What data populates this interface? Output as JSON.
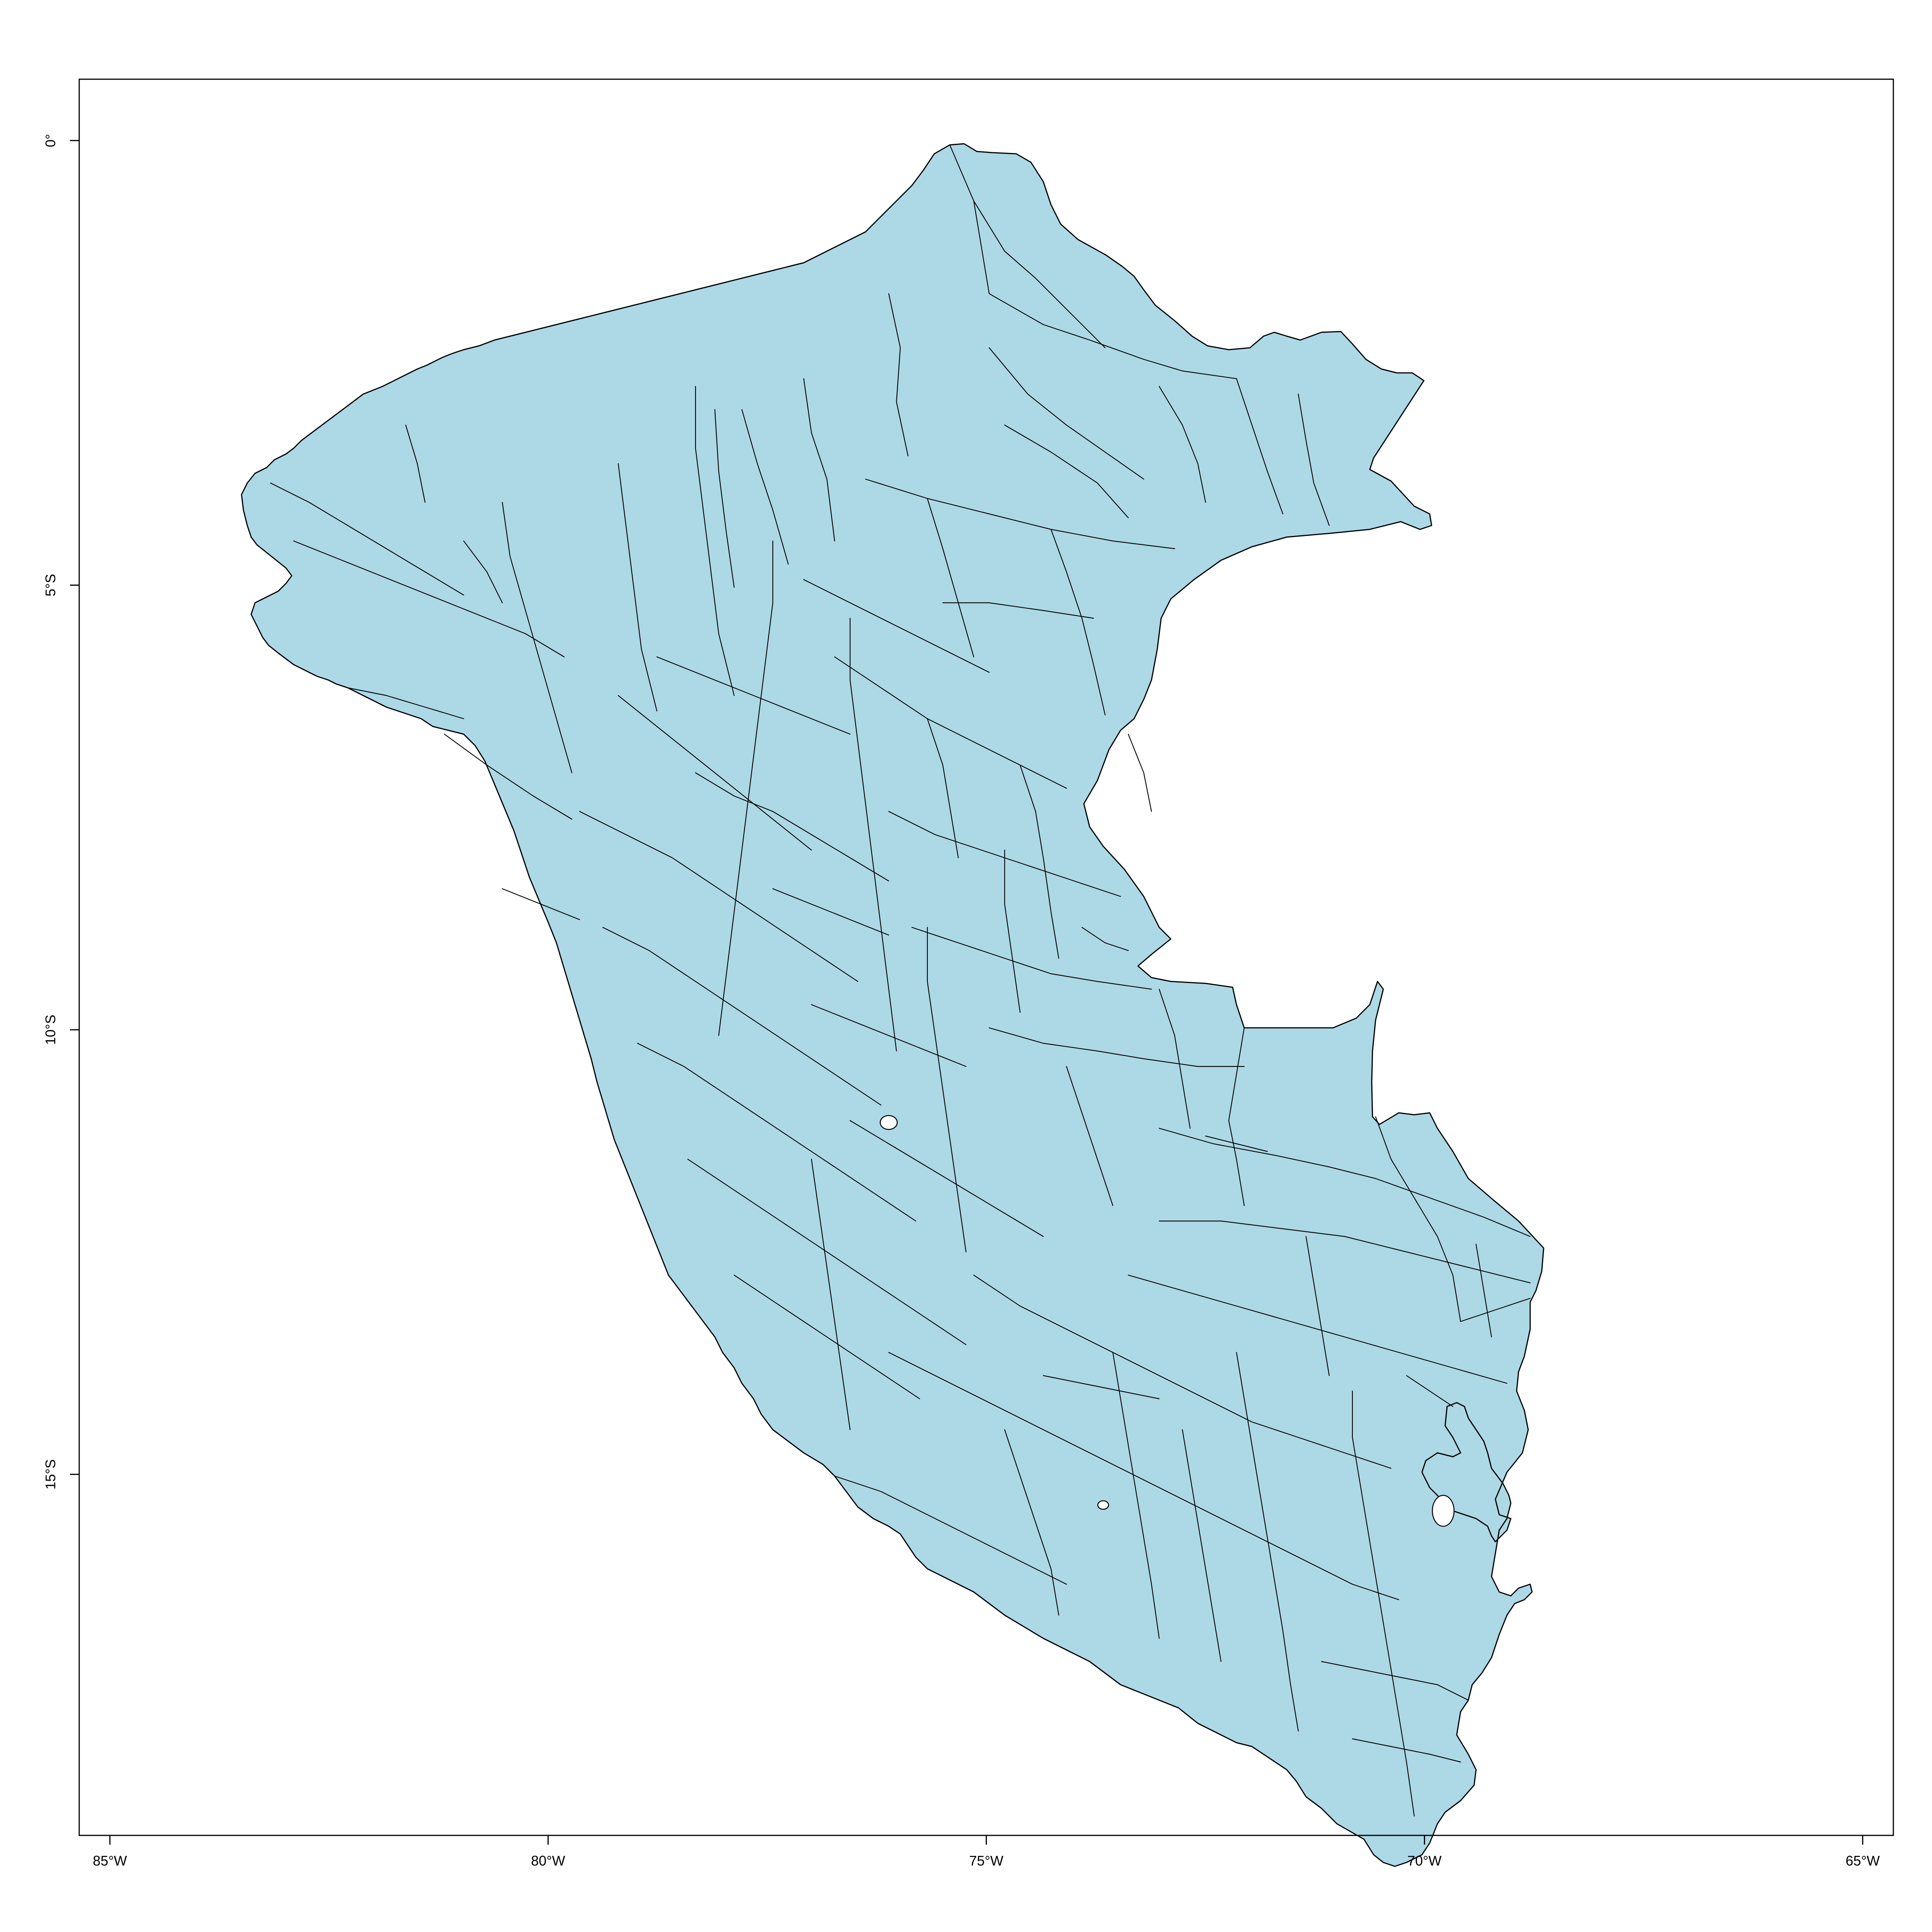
{
  "map": {
    "country_fill": "#add8e6",
    "border_color": "#000000",
    "background": "#ffffff",
    "x_axis": {
      "ticks": [
        {
          "lon": -85,
          "label": "85°W"
        },
        {
          "lon": -80,
          "label": "80°W"
        },
        {
          "lon": -75,
          "label": "75°W"
        },
        {
          "lon": -70,
          "label": "70°W"
        },
        {
          "lon": -65,
          "label": "65°W"
        }
      ]
    },
    "y_axis": {
      "ticks": [
        {
          "lat": 0,
          "label": "0°"
        },
        {
          "lat": -5,
          "label": "5°S"
        },
        {
          "lat": -10,
          "label": "10°S"
        },
        {
          "lat": -15,
          "label": "15°S"
        }
      ]
    },
    "extent": {
      "lon_min": -85.35,
      "lon_max": -64.65,
      "lat_min": -19.06,
      "lat_max": 0.69
    }
  }
}
